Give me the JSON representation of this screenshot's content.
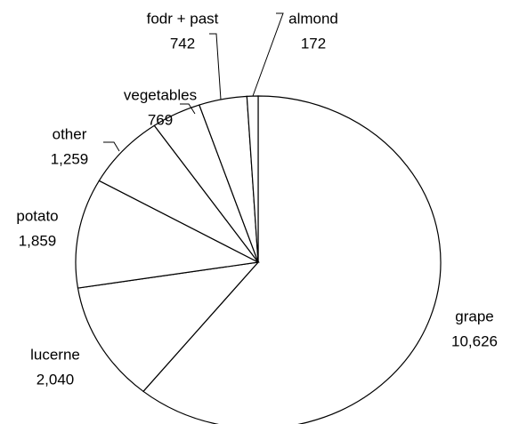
{
  "chart_data": {
    "type": "pie",
    "categories": [
      "grape",
      "lucerne",
      "potato",
      "other",
      "vegetables",
      "fodr + past",
      "almond"
    ],
    "values": [
      10626,
      2040,
      1859,
      1259,
      769,
      742,
      172
    ],
    "value_labels": [
      "10,626",
      "2,040",
      "1,859",
      "1,259",
      "769",
      "742",
      "172"
    ],
    "color": "#ffffff"
  }
}
